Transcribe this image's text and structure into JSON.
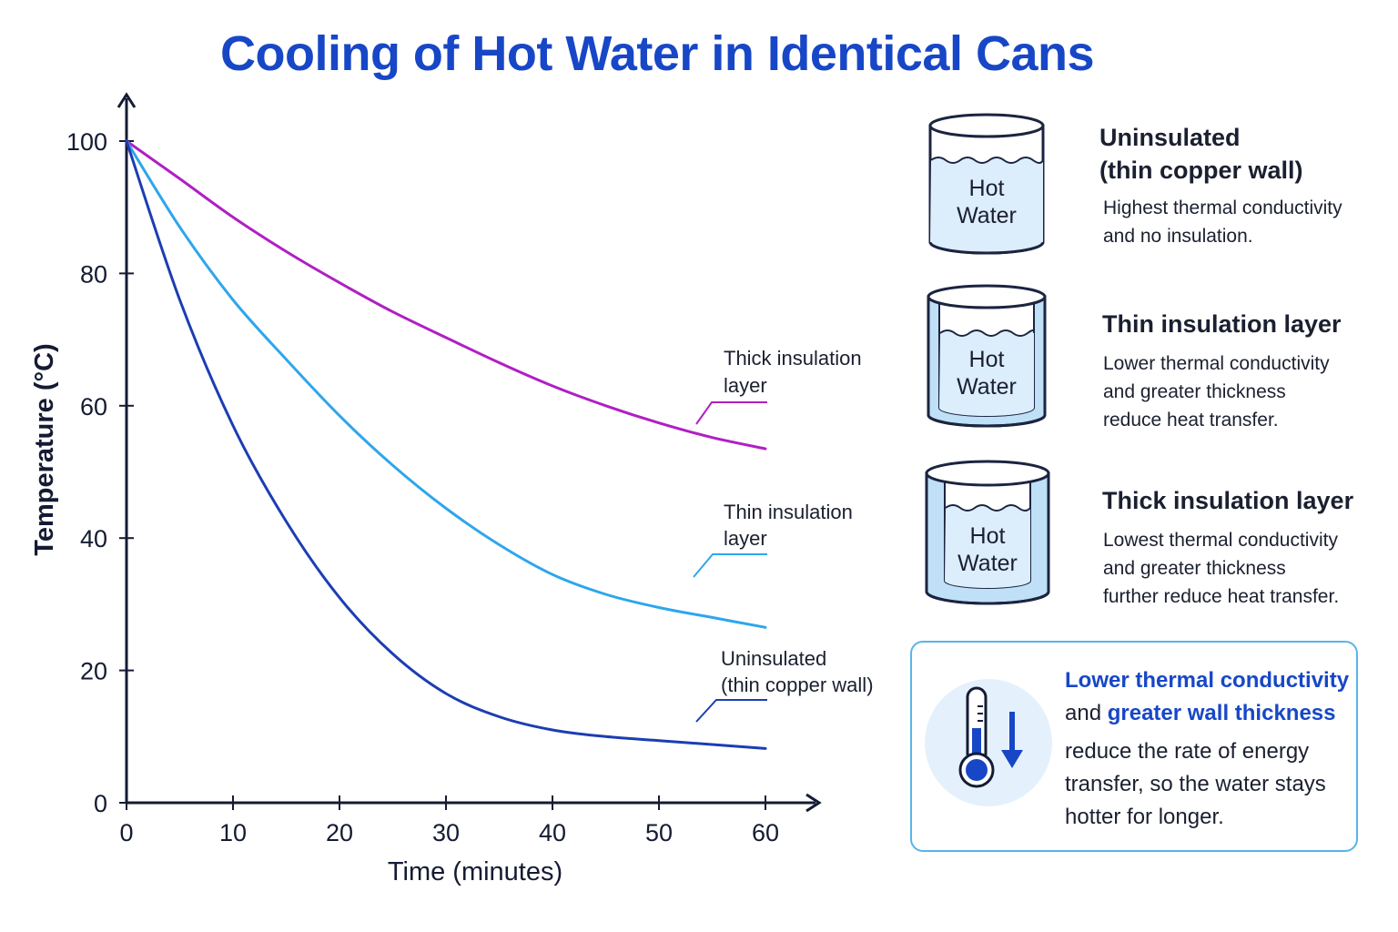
{
  "title": "Cooling of Hot Water in Identical Cans",
  "chart_data": {
    "type": "line",
    "xlabel": "Time (minutes)",
    "ylabel": "Temperature  (°C)",
    "xlim": [
      0,
      60
    ],
    "ylim": [
      0,
      100
    ],
    "xticks": [
      0,
      10,
      20,
      30,
      40,
      50,
      60
    ],
    "yticks": [
      0,
      20,
      40,
      60,
      80,
      100
    ],
    "grid": false,
    "x": [
      0,
      5,
      10,
      15,
      20,
      25,
      30,
      35,
      40,
      45,
      50,
      55,
      60
    ],
    "series": [
      {
        "name": "Thick insulation layer",
        "color": "#b01fc4",
        "values": [
          100,
          94.3,
          88.5,
          83.3,
          78.6,
          74.2,
          70.3,
          66.5,
          63.0,
          60.0,
          57.4,
          55.2,
          53.5
        ]
      },
      {
        "name": "Thin insulation layer",
        "color": "#2ea6ec",
        "values": [
          100,
          87,
          76,
          67,
          58.5,
          51,
          44.5,
          39,
          34.5,
          31.5,
          29.5,
          28,
          26.5
        ]
      },
      {
        "name": "Uninsulated (thin copper wall)",
        "color": "#1c3db3",
        "values": [
          100,
          76,
          57,
          42.5,
          31,
          22.5,
          16.5,
          13,
          11,
          10,
          9.4,
          8.8,
          8.2
        ]
      }
    ],
    "annotations": [
      {
        "series": "Thick insulation layer",
        "lines": [
          "Thick insulation",
          "layer"
        ]
      },
      {
        "series": "Thin insulation layer",
        "lines": [
          "Thin insulation",
          "layer"
        ]
      },
      {
        "series": "Uninsulated (thin copper wall)",
        "lines": [
          "Uninsulated",
          "(thin copper wall)"
        ]
      }
    ]
  },
  "cans": [
    {
      "label_line1": "Hot",
      "label_line2": "Water",
      "title_line1": "Uninsulated",
      "title_line2": "(thin copper wall)",
      "desc_line1": "Highest thermal conductivity",
      "desc_line2": "and no insulation.",
      "desc_line3": ""
    },
    {
      "label_line1": "Hot",
      "label_line2": "Water",
      "title_line1": "Thin insulation layer",
      "title_line2": "",
      "desc_line1": "Lower thermal conductivity",
      "desc_line2": "and greater thickness",
      "desc_line3": "reduce heat transfer."
    },
    {
      "label_line1": "Hot",
      "label_line2": "Water",
      "title_line1": "Thick insulation layer",
      "title_line2": "",
      "desc_line1": "Lowest thermal conductivity",
      "desc_line2": "and greater thickness",
      "desc_line3": "further reduce heat transfer."
    }
  ],
  "summary": {
    "line1_accent": "Lower thermal conductivity",
    "line2_plain": "and ",
    "line2_accent": "greater wall thickness",
    "line3": "reduce the rate of energy",
    "line4": "transfer, so the water stays",
    "line5": "hotter for longer.",
    "icon": "thermometer-down-icon"
  },
  "colors": {
    "title": "#1747c7",
    "axis": "#141b33",
    "water": "#dcedfb",
    "insulation": "#bfe0f7"
  }
}
